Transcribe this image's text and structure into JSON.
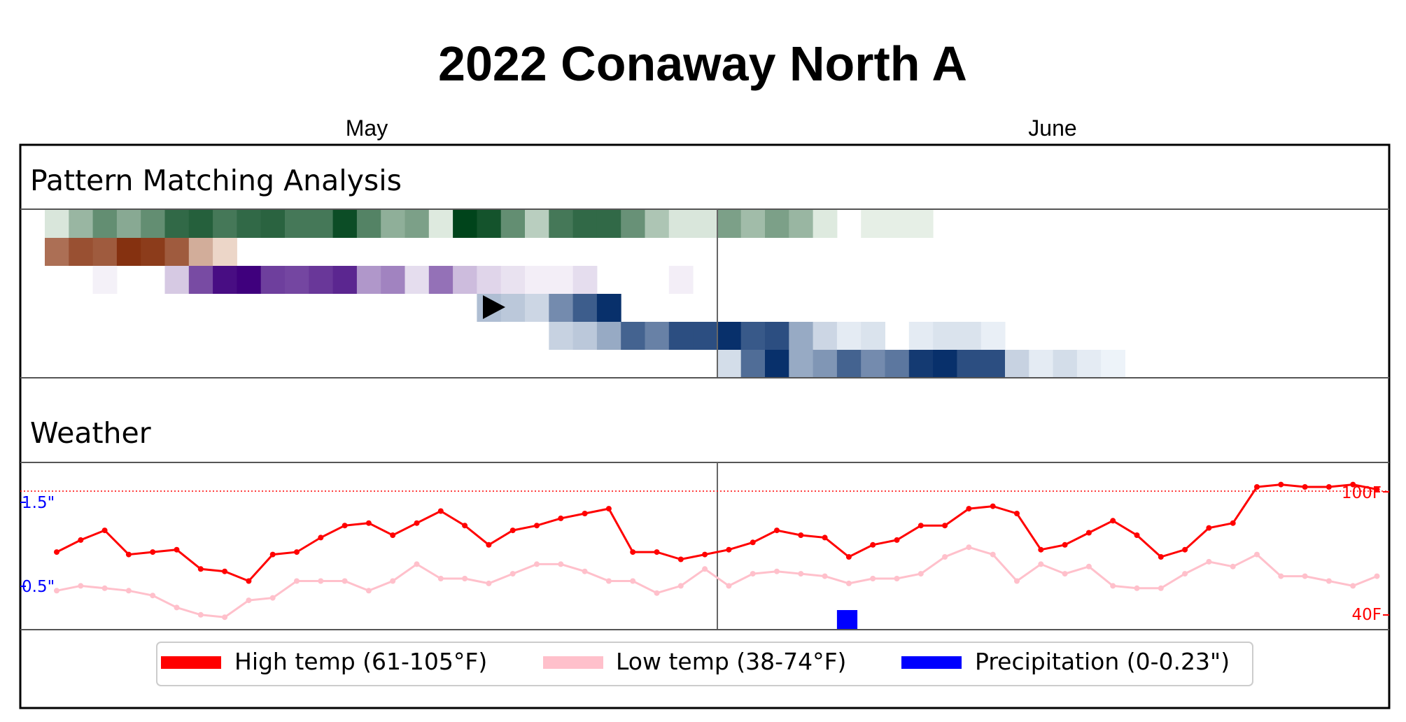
{
  "chart_data": {
    "type": "heatmap",
    "title": "2022 Conaway North A",
    "months": [
      "May",
      "June"
    ],
    "panels": {
      "pattern": "Pattern Matching Analysis",
      "weather": "Weather"
    },
    "pattern_rows": [
      {
        "color": "green",
        "start_day": 1,
        "values": [
          0.12,
          0.38,
          0.6,
          0.45,
          0.6,
          0.8,
          0.85,
          0.72,
          0.8,
          0.83,
          0.72,
          0.72,
          0.95,
          0.66,
          0.42,
          0.5,
          0.1,
          1.0,
          0.92,
          0.6,
          0.25,
          0.72,
          0.8,
          0.8,
          0.58,
          0.3,
          0.12,
          0.12,
          0.5,
          0.35,
          0.5,
          0.38,
          0.1,
          0,
          0.07,
          0.07,
          0.07
        ]
      },
      {
        "color": "orange",
        "start_day": 1,
        "values": [
          0.65,
          0.8,
          0.75,
          0.95,
          0.9,
          0.75,
          0.35,
          0.15
        ]
      },
      {
        "color": "purple",
        "start_day": 1,
        "values": [
          0,
          0,
          0.04,
          0,
          0,
          0.2,
          0.7,
          0.95,
          1.0,
          0.75,
          0.72,
          0.78,
          0.85,
          0.4,
          0.48,
          0.12,
          0.55,
          0.25,
          0.15,
          0.1,
          0.05,
          0.05,
          0.12,
          0,
          0,
          0,
          0.05
        ]
      },
      {
        "color": "blue-a",
        "start_day": 19,
        "values": [
          0.3,
          0.25,
          0.18,
          0.55,
          0.78,
          1.0
        ]
      },
      {
        "color": "blue-b",
        "start_day": 22,
        "values": [
          0.2,
          0.25,
          0.4,
          0.75,
          0.6,
          0.85,
          0.85,
          1.0,
          0.8,
          0.85,
          0.4,
          0.18,
          0.08,
          0.12,
          0,
          0.08,
          0.12,
          0.12,
          0.06
        ]
      },
      {
        "color": "blue-c",
        "start_day": 29,
        "values": [
          0.15,
          0.7,
          1.0,
          0.4,
          0.5,
          0.75,
          0.55,
          0.65,
          0.95,
          1.0,
          0.85,
          0.85,
          0.2,
          0.08,
          0.15,
          0.08,
          0.04
        ]
      }
    ],
    "play_marker_day": 19,
    "play_marker_row": 3,
    "high_temp": [
      69,
      74,
      78,
      68,
      69,
      70,
      62,
      61,
      57,
      68,
      69,
      75,
      80,
      81,
      76,
      81,
      86,
      80,
      72,
      78,
      80,
      83,
      85,
      87,
      69,
      69,
      66,
      68,
      70,
      73,
      78,
      76,
      75,
      67,
      72,
      74,
      80,
      80,
      87,
      88,
      85,
      70,
      72,
      77,
      82,
      76,
      67,
      70,
      79,
      81,
      96,
      97,
      96,
      96,
      97,
      95
    ],
    "low_temp": [
      53,
      55,
      54,
      53,
      51,
      46,
      43,
      42,
      49,
      50,
      57,
      57,
      57,
      53,
      57,
      64,
      58,
      58,
      56,
      60,
      64,
      64,
      61,
      57,
      57,
      52,
      55,
      62,
      55,
      60,
      61,
      60,
      59,
      56,
      58,
      58,
      60,
      67,
      71,
      68,
      57,
      64,
      60,
      63,
      55,
      54,
      54,
      60,
      65,
      63,
      68,
      59,
      59,
      57,
      55,
      59
    ],
    "precipitation_day": 34,
    "precipitation_value": 0.23,
    "temp_axis": {
      "min": 38,
      "max": 105
    },
    "reference_line_temp": 100,
    "precip_ticks": [
      "1.5\"",
      "0.5\""
    ],
    "temp_ticks": [
      "100F",
      "40F"
    ],
    "legend": [
      {
        "label": "High temp (61-105°F)",
        "color": "#ff0000"
      },
      {
        "label": "Low temp (38-74°F)",
        "color": "#ffc0cb"
      },
      {
        "label": "Precipitation (0-0.23\")",
        "color": "#0000ff"
      }
    ]
  }
}
